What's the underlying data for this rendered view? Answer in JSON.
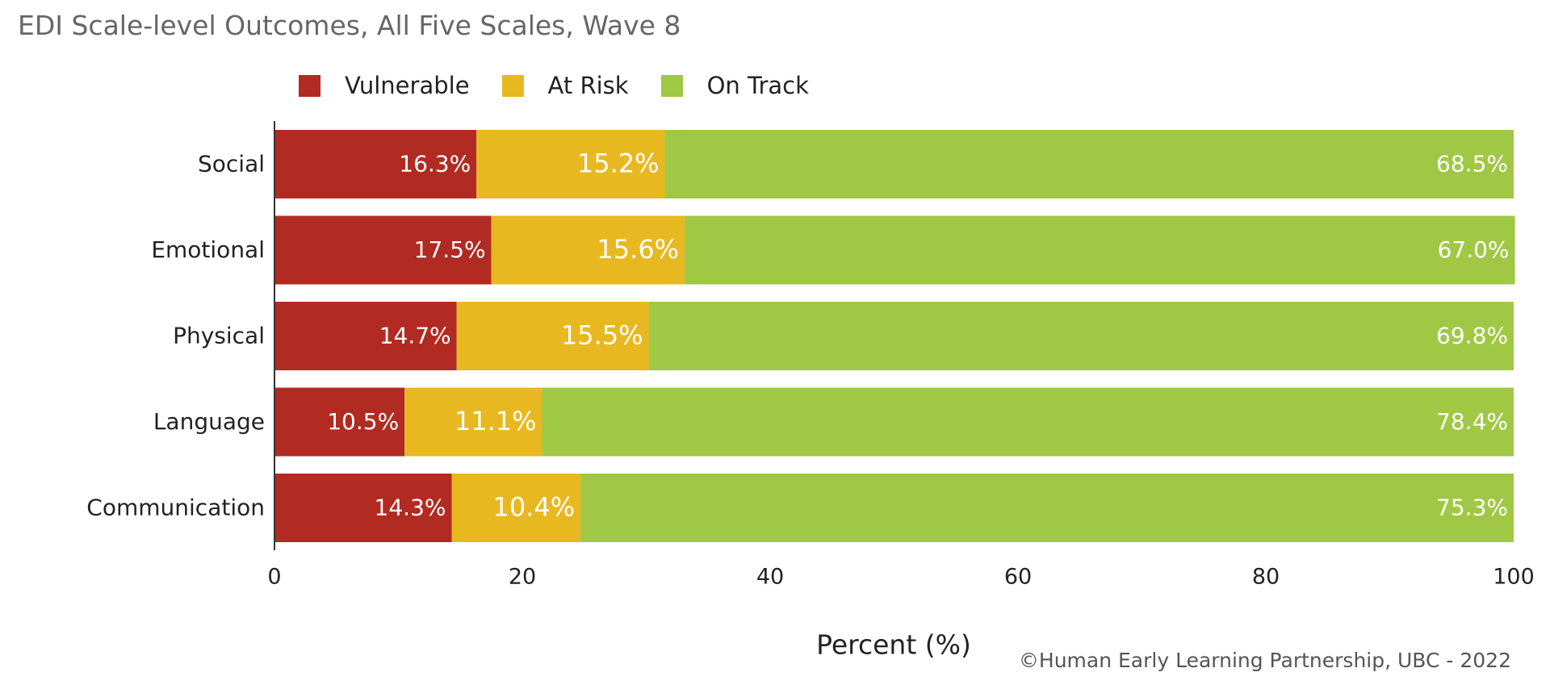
{
  "title": "EDI Scale-level Outcomes, All Five Scales, Wave 8",
  "credit": "©Human Early Learning Partnership, UBC - 2022",
  "legend": [
    {
      "label": "Vulnerable",
      "color": "#B12B22"
    },
    {
      "label": "At Risk",
      "color": "#E8B820"
    },
    {
      "label": "On Track",
      "color": "#A0C845"
    }
  ],
  "chart_data": {
    "type": "bar",
    "orientation": "horizontal",
    "stacked": true,
    "categories": [
      "Social",
      "Emotional",
      "Physical",
      "Language",
      "Communication"
    ],
    "series": [
      {
        "name": "Vulnerable",
        "color": "#B12B22",
        "values": [
          16.3,
          17.5,
          14.7,
          10.5,
          14.3
        ],
        "labels": [
          "16.3%",
          "17.5%",
          "14.7%",
          "10.5%",
          "14.3%"
        ]
      },
      {
        "name": "At Risk",
        "color": "#E8B820",
        "values": [
          15.2,
          15.6,
          15.5,
          11.1,
          10.4
        ],
        "labels": [
          "15.2%",
          "15.6%",
          "15.5%",
          "11.1%",
          "10.4%"
        ]
      },
      {
        "name": "On Track",
        "color": "#A0C845",
        "values": [
          68.5,
          67.0,
          69.8,
          78.4,
          75.3
        ],
        "labels": [
          "68.5%",
          "67.0%",
          "69.8%",
          "78.4%",
          "75.3%"
        ]
      }
    ],
    "xlabel": "Percent (%)",
    "xlim": [
      0,
      100
    ],
    "xticks": [
      0,
      20,
      40,
      60,
      80,
      100
    ],
    "grid": false,
    "legend_position": "top"
  }
}
